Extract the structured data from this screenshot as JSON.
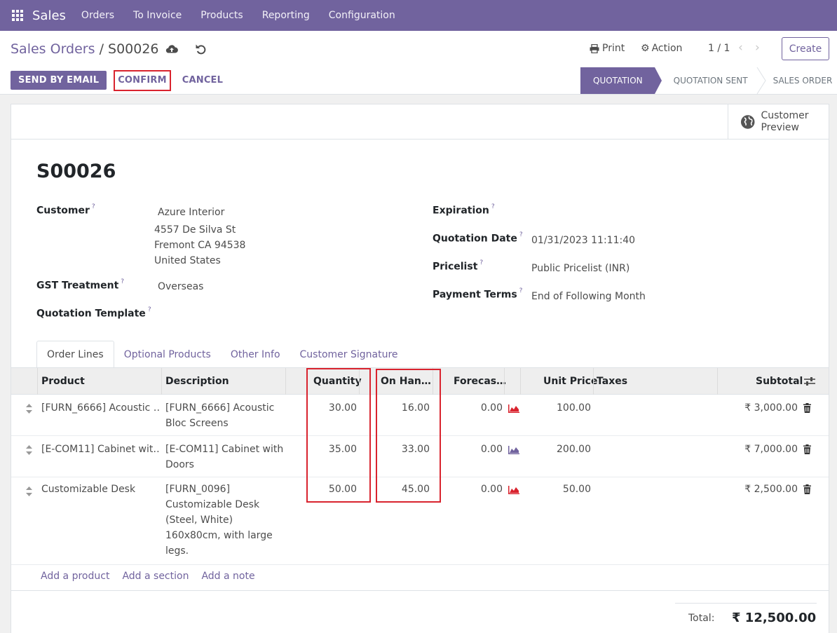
{
  "navbar": {
    "app_name": "Sales",
    "menu": [
      "Orders",
      "To Invoice",
      "Products",
      "Reporting",
      "Configuration"
    ]
  },
  "breadcrumb": {
    "parent": "Sales Orders",
    "separator": "/",
    "current": "S00026"
  },
  "toolbar": {
    "print_label": "Print",
    "action_label": "Action",
    "pager": "1 / 1",
    "create_label": "Create"
  },
  "statusbar": {
    "send_email_label": "SEND BY EMAIL",
    "confirm_label": "CONFIRM",
    "cancel_label": "CANCEL",
    "stages": [
      "QUOTATION",
      "QUOTATION SENT",
      "SALES ORDER"
    ],
    "active_stage": "QUOTATION"
  },
  "smart_button": {
    "line1": "Customer",
    "line2": "Preview"
  },
  "record": {
    "name": "S00026",
    "customer_label": "Customer",
    "customer_name": "Azure Interior",
    "customer_addr1": "4557 De Silva St",
    "customer_addr2": "Fremont CA 94538",
    "customer_addr3": "United States",
    "gst_label": "GST Treatment",
    "gst_value": "Overseas",
    "template_label": "Quotation Template",
    "expiration_label": "Expiration",
    "quotation_date_label": "Quotation Date",
    "quotation_date_value": "01/31/2023 11:11:40",
    "pricelist_label": "Pricelist",
    "pricelist_value": "Public Pricelist (INR)",
    "payment_terms_label": "Payment Terms",
    "payment_terms_value": "End of Following Month",
    "help_mark": "?"
  },
  "tabs": [
    "Order Lines",
    "Optional Products",
    "Other Info",
    "Customer Signature"
  ],
  "order_lines": {
    "columns": {
      "product": "Product",
      "description": "Description",
      "quantity": "Quantity",
      "on_hand": "On Han…",
      "forecast": "Forecas…",
      "unit_price": "Unit Price",
      "taxes": "Taxes",
      "subtotal": "Subtotal"
    },
    "rows": [
      {
        "product": "[FURN_6666] Acoustic …",
        "description": [
          "[FURN_6666] Acoustic",
          "Bloc Screens"
        ],
        "quantity": "30.00",
        "on_hand": "16.00",
        "forecast": "0.00",
        "forecast_chart_color": "#d9232e",
        "unit_price": "100.00",
        "taxes": "",
        "subtotal": "₹ 3,000.00"
      },
      {
        "product": "[E-COM11] Cabinet wit…",
        "description": [
          "[E-COM11] Cabinet with",
          "Doors"
        ],
        "quantity": "35.00",
        "on_hand": "33.00",
        "forecast": "0.00",
        "forecast_chart_color": "#71639e",
        "unit_price": "200.00",
        "taxes": "",
        "subtotal": "₹ 7,000.00"
      },
      {
        "product": "Customizable Desk",
        "description": [
          "[FURN_0096]",
          "Customizable Desk",
          "(Steel, White)",
          "160x80cm, with large",
          "legs."
        ],
        "quantity": "50.00",
        "on_hand": "45.00",
        "forecast": "0.00",
        "forecast_chart_color": "#d9232e",
        "unit_price": "50.00",
        "taxes": "",
        "subtotal": "₹ 2,500.00"
      }
    ],
    "add_links": [
      "Add a product",
      "Add a section",
      "Add a note"
    ]
  },
  "totals": {
    "label": "Total:",
    "value": "₹ 12,500.00"
  },
  "colors": {
    "brand": "#71639e",
    "highlight": "#d9232e"
  },
  "icons": [
    "apps-grid-icon",
    "cloud-upload-icon",
    "undo-icon",
    "print-icon",
    "gear-icon",
    "chevron-left-icon",
    "chevron-right-icon",
    "globe-icon",
    "drag-handle-icon",
    "forecast-chart-icon",
    "trash-icon",
    "column-settings-icon"
  ]
}
